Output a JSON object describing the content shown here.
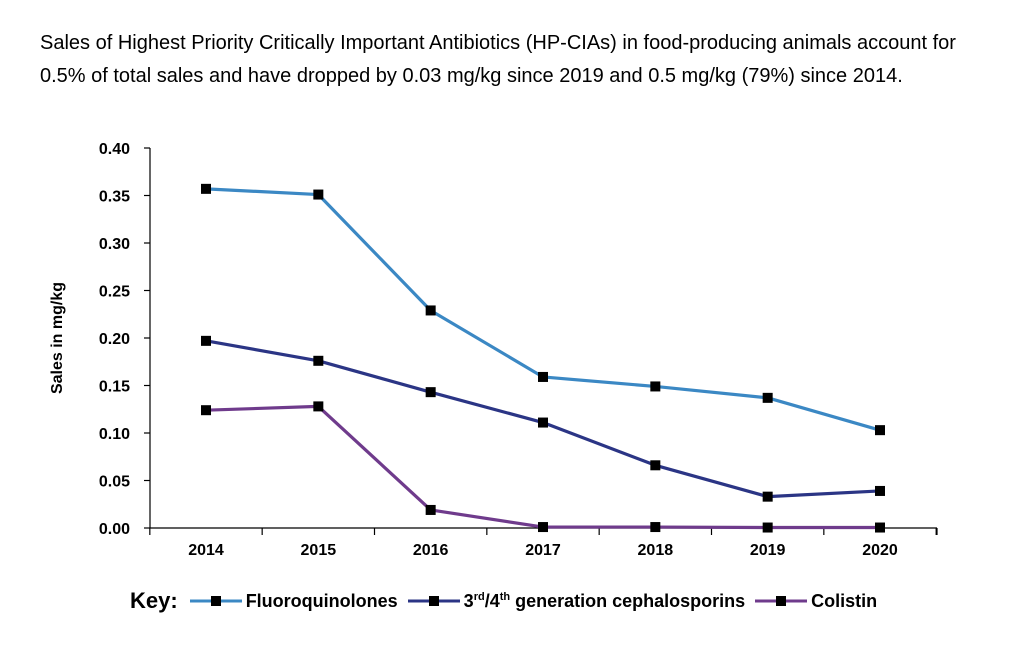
{
  "title": "Sales of Highest Priority Critically Important Antibiotics (HP-CIAs) in food-producing animals account for 0.5% of total sales and have dropped by 0.03 mg/kg since 2019 and 0.5 mg/kg (79%) since 2014.",
  "colors": {
    "fluoroquinolones": "#3b88c4",
    "cephalosporins": "#2b3585",
    "colistin": "#6f3b8c",
    "axis": "#000000"
  },
  "legend": {
    "key_label": "Key:",
    "items": [
      {
        "label_html": "Fluoroquinolones",
        "label_parts": [
          "Fluoroquinolones"
        ]
      },
      {
        "label_parts": [
          "3",
          "rd",
          "/4",
          "th",
          " generation cephalosporins"
        ]
      },
      {
        "label_parts": [
          "Colistin"
        ]
      }
    ]
  },
  "chart_data": {
    "type": "line",
    "title": "",
    "xlabel": "",
    "ylabel": "Sales in mg/kg",
    "categories": [
      "2014",
      "2015",
      "2016",
      "2017",
      "2018",
      "2019",
      "2020"
    ],
    "ylim": [
      0,
      0.4
    ],
    "yticks": [
      "0.00",
      "0.05",
      "0.10",
      "0.15",
      "0.20",
      "0.25",
      "0.30",
      "0.35",
      "0.40"
    ],
    "grid": false,
    "legend_position": "bottom",
    "series": [
      {
        "name": "Fluoroquinolones",
        "color_key": "fluoroquinolones",
        "values": [
          0.357,
          0.351,
          0.229,
          0.159,
          0.149,
          0.137,
          0.103
        ]
      },
      {
        "name": "3rd/4th generation cephalosporins",
        "color_key": "cephalosporins",
        "values": [
          0.197,
          0.176,
          0.143,
          0.111,
          0.066,
          0.033,
          0.039
        ]
      },
      {
        "name": "Colistin",
        "color_key": "colistin",
        "values": [
          0.124,
          0.128,
          0.019,
          0.001,
          0.001,
          0.0005,
          0.0005
        ]
      }
    ]
  }
}
